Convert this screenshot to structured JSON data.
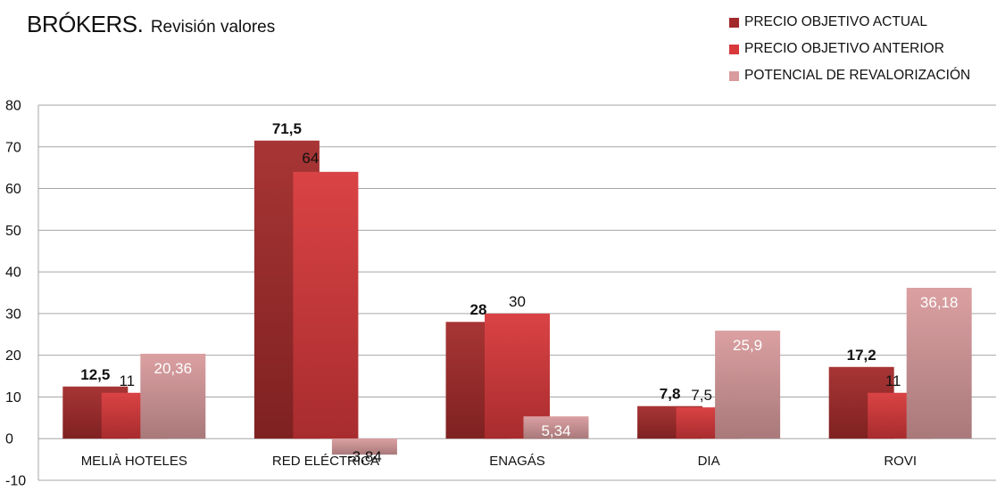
{
  "title": {
    "main": "BRÓKERS.",
    "sub": "Revisión valores"
  },
  "colors": {
    "series": [
      "#a32a2a",
      "#d8393b",
      "#d99b9d"
    ],
    "grid": "#a6a6a6",
    "text": "#111111"
  },
  "chart_data": {
    "type": "bar",
    "title": "BRÓKERS. Revisión valores",
    "categories": [
      "MELIÀ HOTELES",
      "RED ELÉCTRICA",
      "ENAGÁS",
      "DIA",
      "ROVI"
    ],
    "series": [
      {
        "name": "PRECIO OBJETIVO ACTUAL",
        "values": [
          12.5,
          71.5,
          28,
          7.8,
          17.2
        ],
        "labels": [
          "12,5",
          "71,5",
          "28",
          "7,8",
          "17,2"
        ]
      },
      {
        "name": "PRECIO OBJETIVO ANTERIOR",
        "values": [
          11,
          64,
          30,
          7.5,
          11
        ],
        "labels": [
          "11",
          "64",
          "30",
          "7,5",
          "11"
        ]
      },
      {
        "name": "POTENCIAL DE REVALORIZACIÓN",
        "values": [
          20.36,
          -3.84,
          5.34,
          25.9,
          36.18
        ],
        "labels": [
          "20,36",
          "-3,84",
          "5,34",
          "25,9",
          "36,18"
        ]
      }
    ],
    "ylim": [
      -10,
      80
    ],
    "yticks": [
      -10,
      0,
      10,
      20,
      30,
      40,
      50,
      60,
      70,
      80
    ],
    "grid": true,
    "legend": "top-right",
    "xlabel": "",
    "ylabel": ""
  }
}
